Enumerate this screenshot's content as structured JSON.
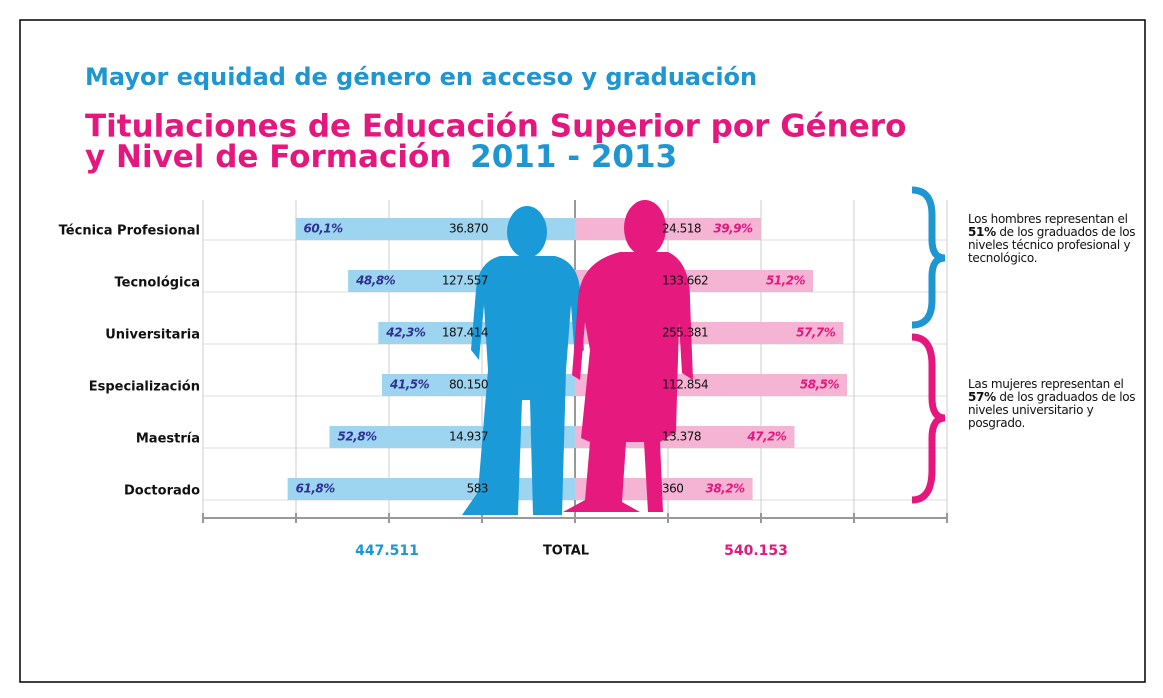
{
  "header": {
    "subtitle": "Mayor equidad de género en acceso y graduación",
    "title_line1": "Titulaciones de Educación Superior por Género",
    "title_line2": "y Nivel de Formación",
    "years": "2011 - 2013"
  },
  "chart_data": {
    "type": "diverging_bar",
    "categories": [
      "Técnica Profesional",
      "Tecnológica",
      "Universitaria",
      "Especialización",
      "Maestría",
      "Doctorado"
    ],
    "series": [
      {
        "side": "left",
        "color": "#9dd4f0",
        "label_color": "#2e3192",
        "values": [
          60.1,
          48.8,
          42.3,
          41.5,
          52.8,
          61.8
        ],
        "value_labels": [
          "60,1%",
          "48,8%",
          "42,3%",
          "41,5%",
          "52,8%",
          "61,8%"
        ],
        "counts": [
          36870,
          127557,
          187414,
          80150,
          14937,
          583
        ],
        "count_labels": [
          "36.870",
          "127.557",
          "187.414",
          "80.150",
          "14.937",
          "583"
        ]
      },
      {
        "side": "right",
        "color": "#f5b4d4",
        "label_color": "#e5177e",
        "values": [
          39.9,
          51.2,
          57.7,
          58.5,
          47.2,
          38.2
        ],
        "value_labels": [
          "39,9%",
          "51,2%",
          "57,7%",
          "58,5%",
          "47,2%",
          "38,2%"
        ],
        "counts": [
          24518,
          133662,
          255381,
          112854,
          13378,
          360
        ],
        "count_labels": [
          "24.518",
          "133.662",
          "255.381",
          "112.854",
          "13.378",
          "360"
        ]
      }
    ],
    "xlim": [
      0,
      80
    ],
    "xticks": [
      0,
      20,
      40,
      60,
      80
    ],
    "grid": true,
    "totals": {
      "left": 447511,
      "left_label": "447.511",
      "label": "TOTAL",
      "right": 540153,
      "right_label": "540.153"
    }
  },
  "annotations": [
    {
      "before": "Los hombres representan el ",
      "bold": "51%",
      "after": " de los graduados de los niveles técnico profesional y tecnológico."
    },
    {
      "before": "Las mujeres representan el ",
      "bold": "57%",
      "after": " de los graduados de los niveles universitario y posgrado."
    }
  ]
}
